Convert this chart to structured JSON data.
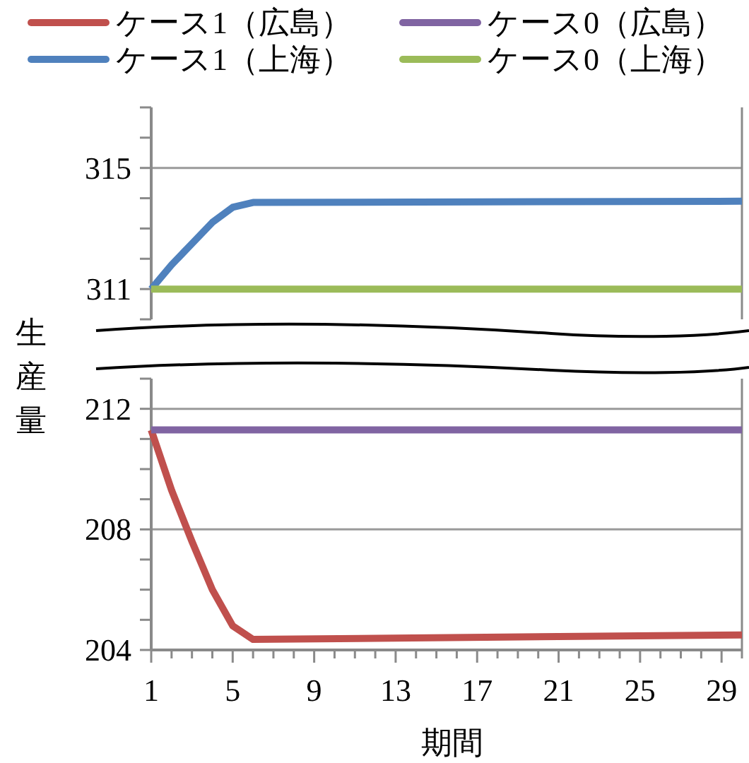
{
  "chart_data": [
    {
      "type": "line",
      "legend": "top",
      "grid": "y",
      "tick_labels": "y",
      "xlim": [
        1,
        30
      ],
      "ylim": [
        310,
        317
      ],
      "yticks": [
        {
          "value": 310,
          "label": null
        },
        311,
        {
          "value": 312,
          "label": null
        },
        {
          "value": 313,
          "label": null
        },
        {
          "value": 314,
          "label": null
        },
        315,
        {
          "value": 316,
          "label": null
        },
        {
          "value": 317,
          "label": null
        }
      ],
      "series": [
        {
          "name": "ケース1（上海）",
          "color": "#4f81bd",
          "x": [
            1,
            2,
            3,
            4,
            5,
            6,
            30
          ],
          "values": [
            311,
            311.8,
            312.5,
            313.2,
            313.7,
            313.86,
            313.9
          ]
        },
        {
          "name": "ケース0（上海）",
          "color": "#9bbb59",
          "x": [
            1,
            30
          ],
          "values": [
            311,
            311
          ]
        }
      ]
    },
    {
      "type": "line",
      "legend": "top",
      "grid": "y",
      "xlabel": "期間",
      "ylabel": "生産量",
      "xlim": [
        1,
        30
      ],
      "ylim": [
        204,
        213
      ],
      "xticks": [
        1,
        {
          "value": 2,
          "label": null
        },
        {
          "value": 3,
          "label": null
        },
        {
          "value": 4,
          "label": null
        },
        5,
        {
          "value": 6,
          "label": null
        },
        {
          "value": 7,
          "label": null
        },
        {
          "value": 8,
          "label": null
        },
        9,
        {
          "value": 10,
          "label": null
        },
        {
          "value": 11,
          "label": null
        },
        {
          "value": 12,
          "label": null
        },
        13,
        {
          "value": 14,
          "label": null
        },
        {
          "value": 15,
          "label": null
        },
        {
          "value": 16,
          "label": null
        },
        17,
        {
          "value": 18,
          "label": null
        },
        {
          "value": 19,
          "label": null
        },
        {
          "value": 20,
          "label": null
        },
        21,
        {
          "value": 22,
          "label": null
        },
        {
          "value": 23,
          "label": null
        },
        {
          "value": 24,
          "label": null
        },
        25,
        {
          "value": 26,
          "label": null
        },
        {
          "value": 27,
          "label": null
        },
        {
          "value": 28,
          "label": null
        },
        29,
        {
          "value": 30,
          "label": null
        }
      ],
      "yticks": [
        204,
        {
          "value": 205,
          "label": null
        },
        {
          "value": 206,
          "label": null
        },
        {
          "value": 207,
          "label": null
        },
        208,
        {
          "value": 209,
          "label": null
        },
        {
          "value": 210,
          "label": null
        },
        {
          "value": 211,
          "label": null
        },
        212,
        {
          "value": 213,
          "label": null
        }
      ],
      "series": [
        {
          "name": "ケース1（広島）",
          "color": "#c0504d",
          "x": [
            1,
            2,
            3,
            4,
            5,
            6,
            30
          ],
          "values": [
            211.3,
            209.3,
            207.6,
            206.0,
            204.8,
            204.35,
            204.5
          ]
        },
        {
          "name": "ケース0（広島）",
          "color": "#8064a2",
          "x": [
            1,
            30
          ],
          "values": [
            211.3,
            211.3
          ]
        }
      ]
    }
  ]
}
